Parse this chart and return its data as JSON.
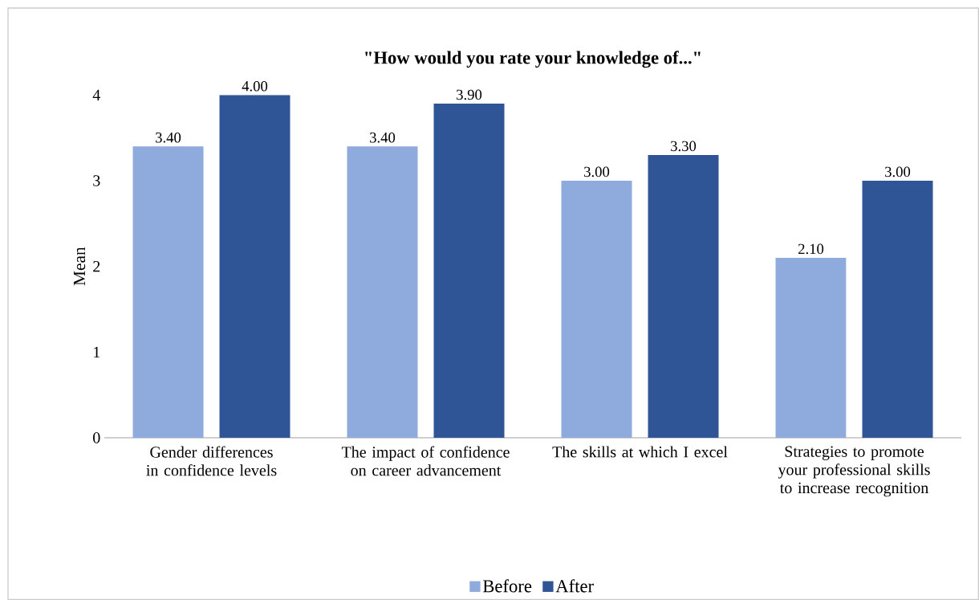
{
  "chart_data": {
    "type": "bar",
    "title": "\"How would you rate your knowledge of...\"",
    "ylabel": "Mean",
    "categories": [
      "Gender differences in confidence levels",
      "The impact of confidence on career advancement",
      "The skills at which I excel",
      "Strategies to promote your professional skills to increase recognition"
    ],
    "series": [
      {
        "name": "Before",
        "color": "#8faadc",
        "values": [
          3.4,
          3.4,
          3.0,
          2.1
        ],
        "value_labels": [
          "3.40",
          "3.40",
          "3.00",
          "2.10"
        ]
      },
      {
        "name": "After",
        "color": "#2f5597",
        "values": [
          4.0,
          3.9,
          3.3,
          3.0
        ],
        "value_labels": [
          "4.00",
          "3.90",
          "3.30",
          "3.00"
        ]
      }
    ],
    "ylim": [
      0,
      4
    ],
    "yticks": [
      0,
      1,
      2,
      3,
      4
    ],
    "grid": false,
    "legend": "bottom"
  }
}
